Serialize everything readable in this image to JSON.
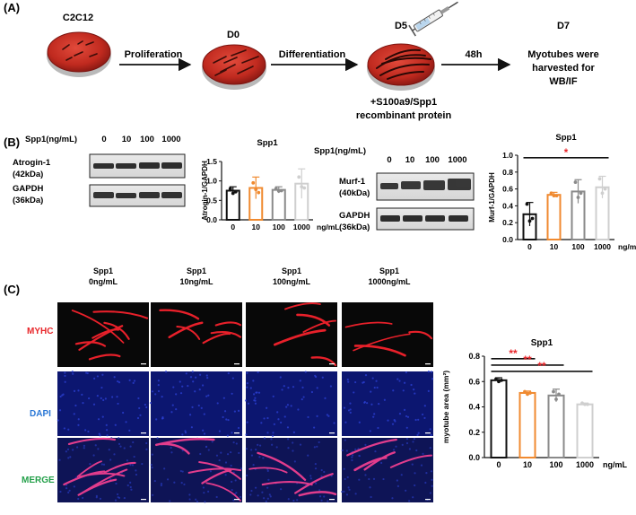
{
  "panelA": {
    "label": "(A)",
    "steps": [
      {
        "top": "C2C12",
        "arrow": "Proliferation"
      },
      {
        "top": "D0",
        "arrow": "Differentiation"
      },
      {
        "top": "D5",
        "arrow": "48h"
      },
      {
        "top": "D7"
      }
    ],
    "treatment_lines": [
      "+S100a9/Spp1",
      "recombinant protein"
    ],
    "outcome_lines": [
      "Myotubes were",
      "harvested for",
      "WB/IF"
    ]
  },
  "panelB": {
    "label": "(B)",
    "left_blot": {
      "dose_header": "Spp1(ng/mL)",
      "doses": [
        "0",
        "10",
        "100",
        "1000"
      ],
      "rows": [
        {
          "lines": [
            "Atrogin-1",
            "(42kDa)"
          ]
        },
        {
          "lines": [
            "GAPDH",
            "(36kDa)"
          ]
        }
      ]
    },
    "right_blot": {
      "dose_header": "Spp1(ng/mL)",
      "doses": [
        "0",
        "10",
        "100",
        "1000"
      ],
      "rows": [
        {
          "lines": [
            "Murf-1",
            "(40kDa)"
          ]
        },
        {
          "lines": [
            "GAPDH",
            "(36kDa)"
          ]
        }
      ]
    }
  },
  "panelC": {
    "label": "(C)",
    "columns": [
      [
        "Spp1",
        "0ng/mL"
      ],
      [
        "Spp1",
        "10ng/mL"
      ],
      [
        "Spp1",
        "100ng/mL"
      ],
      [
        "Spp1",
        "1000ng/mL"
      ]
    ],
    "rows": [
      {
        "label": "MYHC",
        "color": "#e8262a"
      },
      {
        "label": "DAPI",
        "color": "#2a77d6"
      },
      {
        "label": "MERGE",
        "color": "#24a04a"
      }
    ]
  },
  "chart_data": [
    {
      "type": "bar",
      "title": "Spp1",
      "ylabel": "Atrogin-1/GAPDH",
      "categories": [
        "0",
        "10",
        "100",
        "1000"
      ],
      "unit": "ng/mL",
      "values": [
        0.75,
        0.82,
        0.77,
        0.93
      ],
      "errors": [
        0.1,
        0.28,
        0.08,
        0.38
      ],
      "points": [
        [
          0.8,
          0.68,
          0.72
        ],
        [
          0.95,
          0.78,
          0.7
        ],
        [
          0.8,
          0.74,
          0.75
        ],
        [
          1.1,
          0.85,
          0.82
        ]
      ],
      "ylim": [
        0,
        1.5
      ],
      "yticks": [
        "0.0",
        "0.5",
        "1.0",
        "1.5"
      ],
      "colors": [
        "#111111",
        "#f08a30",
        "#8a8a8a",
        "#cfcfcf"
      ],
      "significance": []
    },
    {
      "type": "bar",
      "title": "Spp1",
      "ylabel": "Murf-1/GAPDH",
      "categories": [
        "0",
        "10",
        "100",
        "1000"
      ],
      "unit": "ng/mL",
      "values": [
        0.3,
        0.53,
        0.57,
        0.62
      ],
      "errors": [
        0.14,
        0.03,
        0.14,
        0.13
      ],
      "points": [
        [
          0.42,
          0.22,
          0.25
        ],
        [
          0.55,
          0.52,
          0.52
        ],
        [
          0.68,
          0.5,
          0.55
        ],
        [
          0.72,
          0.55,
          0.6
        ]
      ],
      "ylim": [
        0,
        1.0
      ],
      "yticks": [
        "0.0",
        "0.2",
        "0.4",
        "0.6",
        "0.8",
        "1.0"
      ],
      "colors": [
        "#111111",
        "#f08a30",
        "#8a8a8a",
        "#cfcfcf"
      ],
      "significance": [
        {
          "from": 0,
          "to": 3,
          "label": "*"
        }
      ]
    },
    {
      "type": "bar",
      "title": "Spp1",
      "ylabel": "myotube area (mm²)",
      "categories": [
        "0",
        "10",
        "100",
        "1000"
      ],
      "unit": "ng/mL",
      "values": [
        0.61,
        0.51,
        0.49,
        0.42
      ],
      "errors": [
        0.02,
        0.015,
        0.05,
        0.01
      ],
      "points": [
        [
          0.62,
          0.6,
          0.61
        ],
        [
          0.52,
          0.5,
          0.51
        ],
        [
          0.52,
          0.46,
          0.5
        ],
        [
          0.43,
          0.42,
          0.42
        ]
      ],
      "ylim": [
        0,
        0.8
      ],
      "yticks": [
        "0.0",
        "0.2",
        "0.4",
        "0.6",
        "0.8"
      ],
      "colors": [
        "#111111",
        "#f08a30",
        "#8a8a8a",
        "#cfcfcf"
      ],
      "significance": [
        {
          "from": 0,
          "to": 1,
          "label": "**"
        },
        {
          "from": 0,
          "to": 2,
          "label": "**"
        },
        {
          "from": 0,
          "to": 3,
          "label": "**"
        }
      ]
    }
  ]
}
